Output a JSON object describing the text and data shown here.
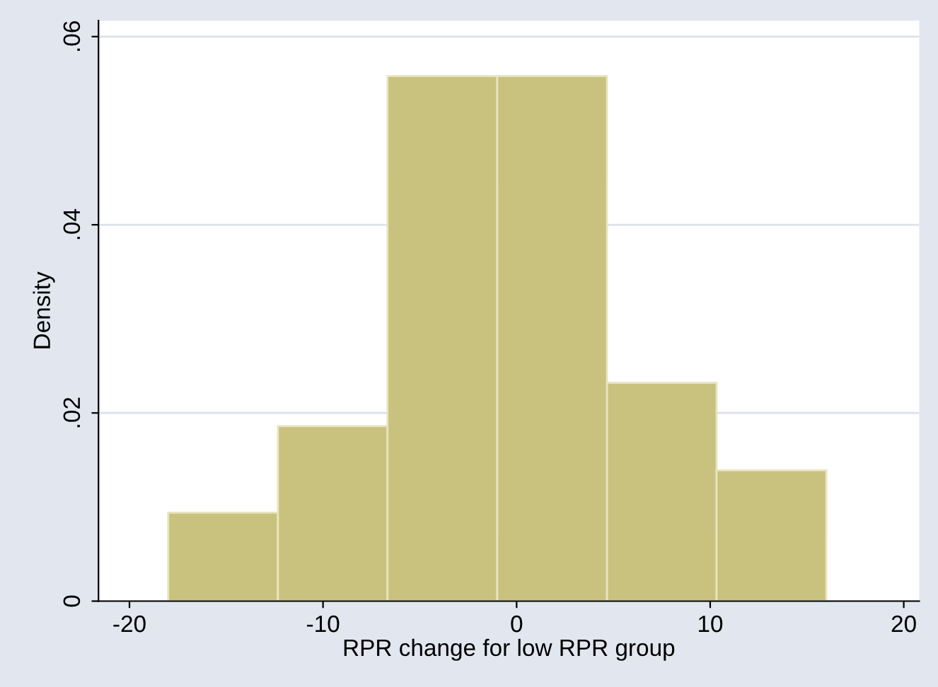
{
  "chart_data": {
    "type": "histogram",
    "xlabel": "RPR change for low RPR group",
    "ylabel": "Density",
    "bins": [
      -18,
      -12.33,
      -6.67,
      -1,
      4.67,
      10.33,
      16
    ],
    "values": [
      0.0094,
      0.0186,
      0.0558,
      0.0558,
      0.0232,
      0.0139
    ],
    "color": "#c9c27e",
    "xlim": [
      -21.6,
      20.8
    ],
    "xticks": [
      -20,
      -10,
      0,
      10,
      20
    ],
    "ylim": [
      0,
      0.0617
    ],
    "yticks": [
      {
        "value": 0,
        "label": "0"
      },
      {
        "value": 0.02,
        "label": ".02"
      },
      {
        "value": 0.04,
        "label": ".04"
      },
      {
        "value": 0.06,
        "label": ".06"
      }
    ],
    "grid": "y"
  }
}
